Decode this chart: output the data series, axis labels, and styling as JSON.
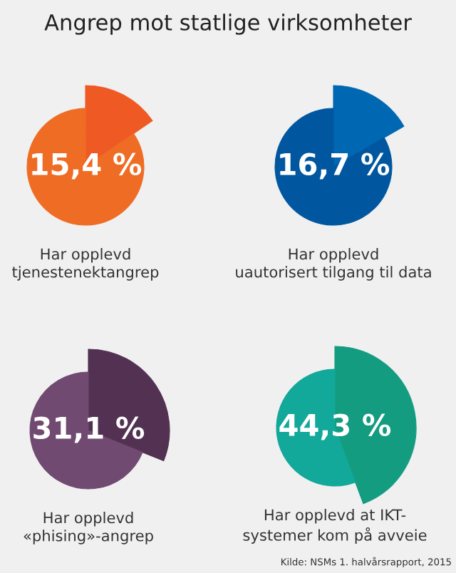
{
  "chart_data": [
    {
      "type": "pie",
      "title": "Angrep mot statlige virksomheter",
      "xlabel": "Har opplevd\ntjenestenektangrep",
      "categories": [
        null,
        null
      ],
      "values": [
        15.4,
        84.6
      ],
      "colors": [
        "#ef5a24",
        "#ef6c24"
      ],
      "value_labels": [
        "15,4 %",
        null
      ]
    },
    {
      "type": "pie",
      "xlabel": "Har opplevd\nuautorisert tilgang til data",
      "categories": [
        null,
        null
      ],
      "values": [
        16.7,
        83.3
      ],
      "colors": [
        "#0068b3",
        "#0057a0"
      ],
      "value_labels": [
        "16,7 %",
        null
      ]
    },
    {
      "type": "pie",
      "xlabel": "Har opplevd\n«phising»-angrep",
      "categories": [
        null,
        null
      ],
      "values": [
        31.1,
        68.9
      ],
      "colors": [
        "#533152",
        "#714a72"
      ],
      "value_labels": [
        "31,1 %",
        null
      ]
    },
    {
      "type": "pie",
      "xlabel": "Har opplevd at IKT-\nsystemer kom på avveie",
      "categories": [
        null,
        null
      ],
      "values": [
        44.3,
        55.7
      ],
      "colors": [
        "#139c80",
        "#12a89a"
      ],
      "value_labels": [
        "44,3 %",
        null
      ],
      "annotations": [
        "Kilde: NSMs 1. halvårsrapport, 2015"
      ]
    }
  ]
}
